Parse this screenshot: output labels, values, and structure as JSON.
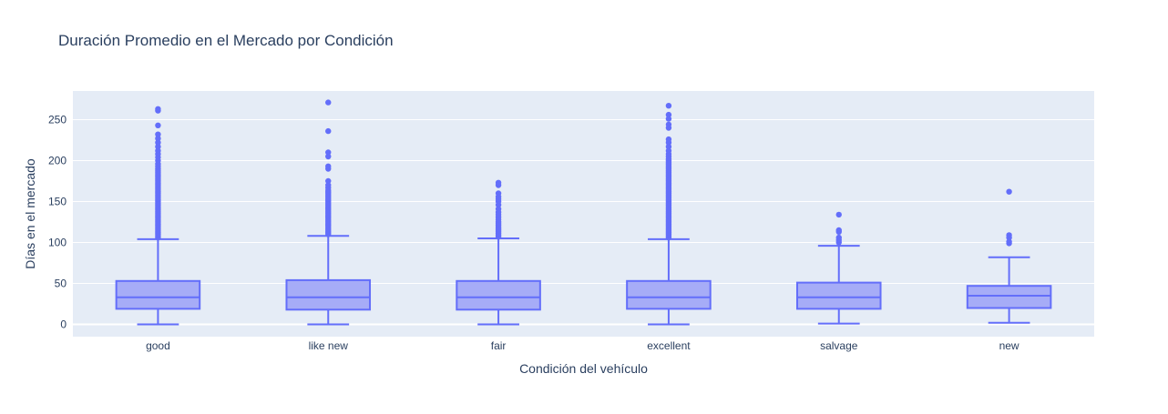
{
  "chart_data": {
    "type": "box",
    "title": "Duración Promedio en el Mercado por Condición",
    "xlabel": "Condición del vehículo",
    "ylabel": "Días en el mercado",
    "categories": [
      "good",
      "like new",
      "fair",
      "excellent",
      "salvage",
      "new"
    ],
    "ylim": [
      -15,
      285
    ],
    "yticks": [
      0,
      50,
      100,
      150,
      200,
      250
    ],
    "grid": true,
    "box_color": "#636efa",
    "box_fill": "#a6acf7",
    "plot_bg": "#e5ecf6",
    "boxes": [
      {
        "category": "good",
        "min": 0,
        "q1": 19,
        "median": 33,
        "q3": 53,
        "max": 104,
        "outliers": [
          106,
          108,
          110,
          112,
          114,
          116,
          118,
          120,
          122,
          124,
          126,
          128,
          130,
          132,
          134,
          136,
          138,
          140,
          142,
          144,
          146,
          148,
          150,
          152,
          154,
          156,
          158,
          160,
          162,
          164,
          166,
          168,
          170,
          172,
          174,
          176,
          178,
          180,
          182,
          184,
          186,
          188,
          190,
          193,
          196,
          200,
          204,
          208,
          212,
          217,
          222,
          227,
          232,
          243,
          261,
          263
        ]
      },
      {
        "category": "like new",
        "min": 0,
        "q1": 18,
        "median": 33,
        "q3": 54,
        "max": 108,
        "outliers": [
          110,
          112,
          114,
          116,
          118,
          120,
          122,
          124,
          126,
          128,
          130,
          132,
          134,
          136,
          138,
          140,
          142,
          144,
          146,
          148,
          150,
          152,
          154,
          156,
          158,
          160,
          162,
          164,
          167,
          170,
          175,
          190,
          193,
          205,
          210,
          236,
          271
        ]
      },
      {
        "category": "fair",
        "min": 0,
        "q1": 18,
        "median": 33,
        "q3": 53,
        "max": 105,
        "outliers": [
          107,
          109,
          111,
          113,
          115,
          117,
          119,
          121,
          123,
          125,
          128,
          131,
          134,
          137,
          141,
          146,
          150,
          153,
          156,
          160,
          170,
          173
        ]
      },
      {
        "category": "excellent",
        "min": 0,
        "q1": 19,
        "median": 33,
        "q3": 53,
        "max": 104,
        "outliers": [
          106,
          108,
          110,
          112,
          114,
          116,
          118,
          120,
          122,
          124,
          126,
          128,
          130,
          132,
          134,
          136,
          138,
          140,
          142,
          144,
          146,
          148,
          150,
          152,
          154,
          156,
          158,
          160,
          162,
          164,
          166,
          168,
          170,
          172,
          174,
          176,
          178,
          180,
          182,
          184,
          186,
          188,
          190,
          192,
          194,
          196,
          198,
          200,
          202,
          205,
          208,
          212,
          217,
          222,
          226,
          240,
          244,
          251,
          256,
          267
        ]
      },
      {
        "category": "salvage",
        "min": 1,
        "q1": 19,
        "median": 33,
        "q3": 51,
        "max": 96,
        "outliers": [
          100,
          103,
          106,
          113,
          115,
          134
        ]
      },
      {
        "category": "new",
        "min": 2,
        "q1": 20,
        "median": 35,
        "q3": 47,
        "max": 82,
        "outliers": [
          99,
          101,
          106,
          109,
          162
        ]
      }
    ]
  }
}
